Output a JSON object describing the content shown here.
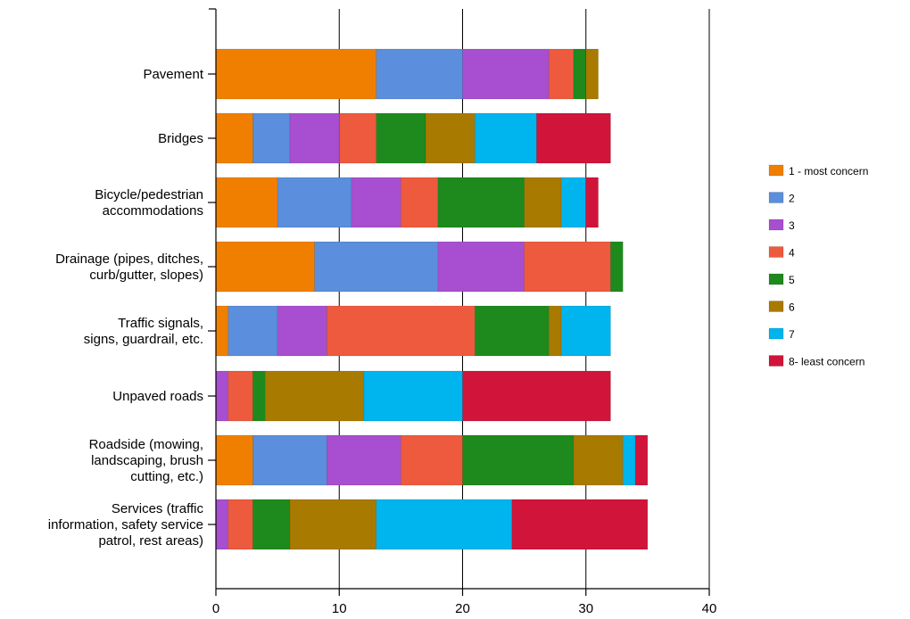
{
  "chart_data": {
    "type": "bar",
    "orientation": "horizontal",
    "stacked": true,
    "categories": [
      [
        "Pavement"
      ],
      [
        "Bridges"
      ],
      [
        "Bicycle/pedestrian",
        "accommodations"
      ],
      [
        "Drainage (pipes, ditches,",
        "curb/gutter, slopes)"
      ],
      [
        "Traffic signals,",
        "signs, guardrail, etc."
      ],
      [
        "Unpaved roads"
      ],
      [
        "Roadside (mowing,",
        "landscaping, brush",
        "cutting, etc.)"
      ],
      [
        "Services (traffic",
        "information, safety service",
        "patrol, rest areas)"
      ]
    ],
    "series": [
      {
        "name": "1 - most concern",
        "color": "#F07F00",
        "values": [
          13,
          3,
          5,
          8,
          1,
          0,
          3,
          0
        ]
      },
      {
        "name": "2",
        "color": "#5B8EDC",
        "values": [
          7,
          3,
          6,
          10,
          4,
          0,
          6,
          0
        ]
      },
      {
        "name": "3",
        "color": "#A74FD0",
        "values": [
          7,
          4,
          4,
          7,
          4,
          1,
          6,
          1
        ]
      },
      {
        "name": "4",
        "color": "#EE5A3D",
        "values": [
          2,
          3,
          3,
          7,
          12,
          2,
          5,
          2
        ]
      },
      {
        "name": "5",
        "color": "#1E8A1E",
        "values": [
          1,
          4,
          7,
          1,
          6,
          1,
          9,
          3
        ]
      },
      {
        "name": "6",
        "color": "#A87A00",
        "values": [
          1,
          4,
          3,
          0,
          1,
          8,
          4,
          7
        ]
      },
      {
        "name": "7",
        "color": "#00B4EE",
        "values": [
          0,
          5,
          2,
          0,
          4,
          8,
          1,
          11
        ]
      },
      {
        "name": "8- least concern",
        "color": "#D1143A",
        "values": [
          0,
          6,
          1,
          0,
          0,
          12,
          1,
          11
        ]
      }
    ],
    "xlim": [
      0,
      40
    ],
    "xticks": [
      "0",
      "10",
      "20",
      "30",
      "40"
    ],
    "grid": true,
    "legend_position": "right"
  }
}
